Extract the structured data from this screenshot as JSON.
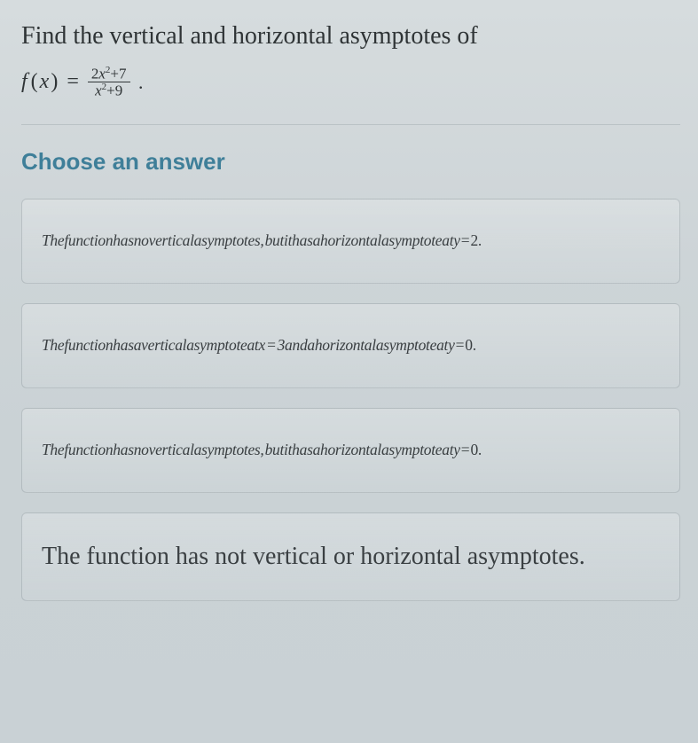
{
  "question": {
    "line1": "Find the vertical and horizontal asymptotes of",
    "func_letter": "f",
    "variable": "x",
    "equals": "=",
    "numerator_coef": "2",
    "numerator_var": "x",
    "numerator_exp": "2",
    "numerator_plus_const": "+7",
    "denominator_var": "x",
    "denominator_exp": "2",
    "denominator_plus_const": "+9",
    "period": "."
  },
  "choose_label": "Choose an answer",
  "options": [
    {
      "id": "opt-a",
      "style": "italic",
      "text_main": "Thefunctionhasnoverticalasymptotes, butithasahorizontalasymptoteaty",
      "text_tail": " = 2."
    },
    {
      "id": "opt-b",
      "style": "italic",
      "text_main": "Thefunctionhasaverticalasymptoteatx = 3andahorizontalasymptoteaty",
      "text_tail": " = 0."
    },
    {
      "id": "opt-c",
      "style": "italic",
      "text_main": "Thefunctionhasnoverticalasymptotes, butithasahorizontalasymptoteaty",
      "text_tail": " = 0."
    },
    {
      "id": "opt-d",
      "style": "large",
      "text_main": "The function has not vertical or horizontal asymptotes.",
      "text_tail": ""
    }
  ]
}
